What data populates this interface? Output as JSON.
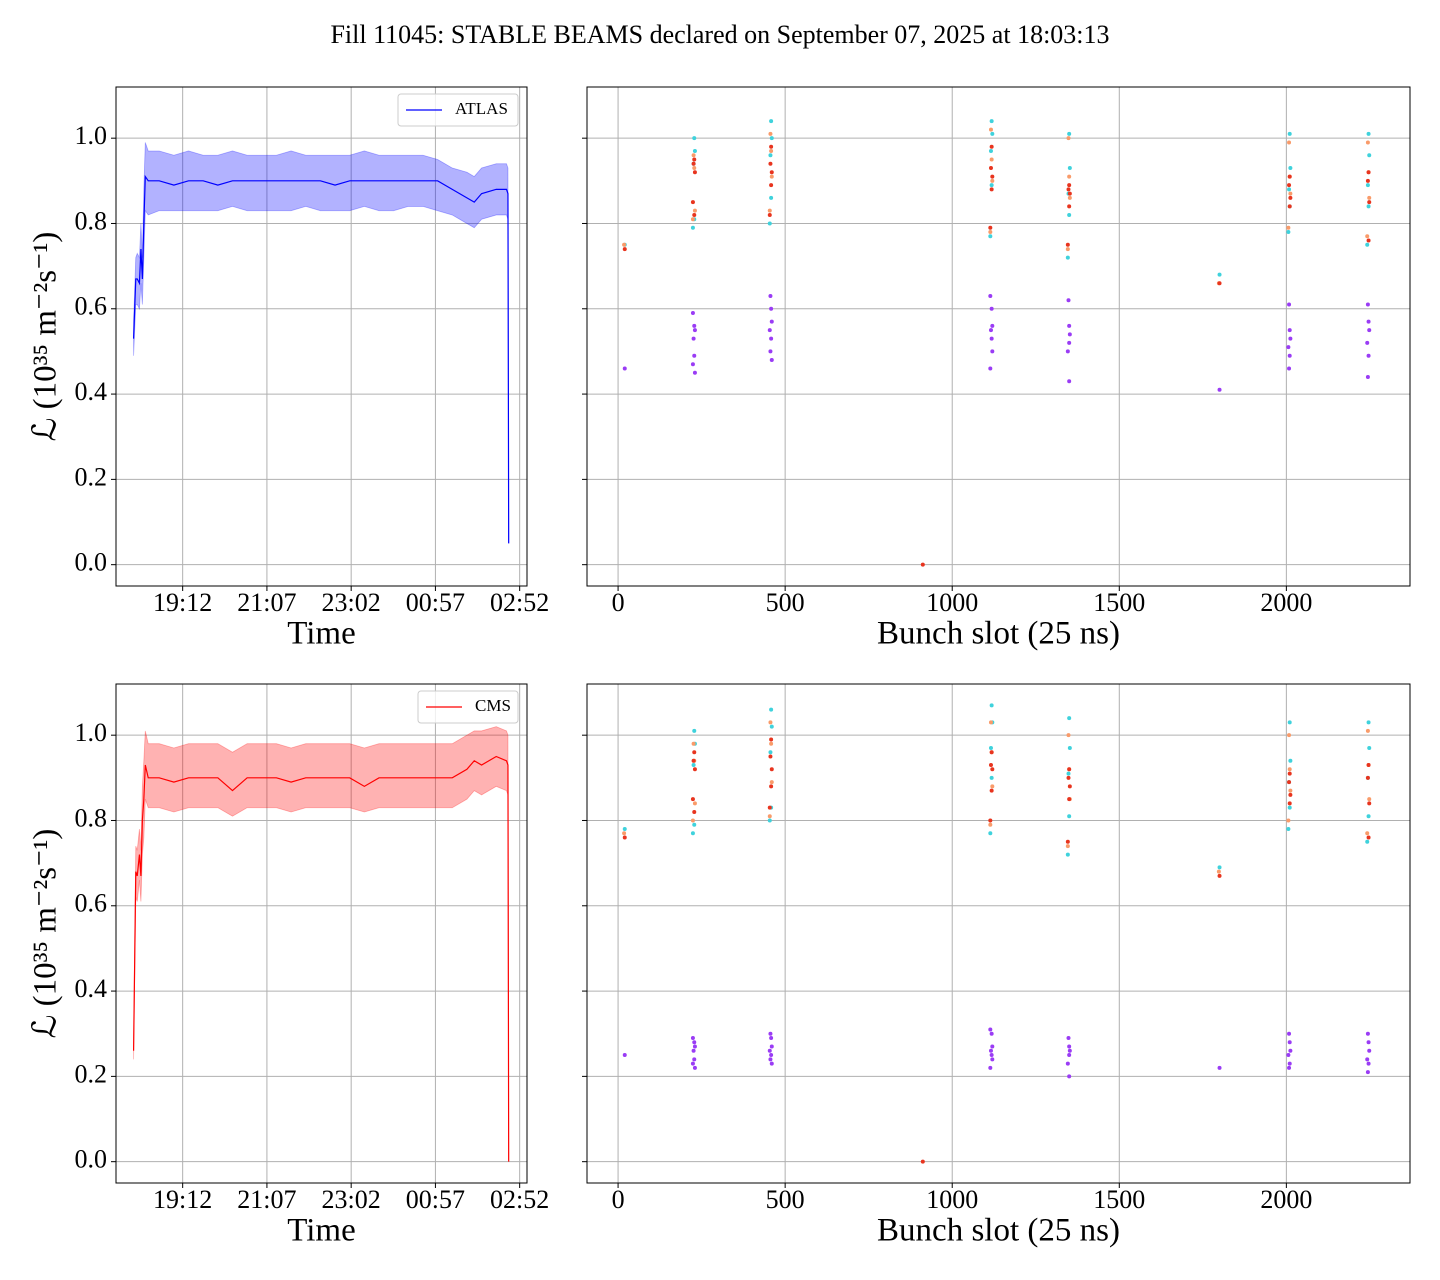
{
  "title": "Fill 11045: STABLE BEAMS declared on September 07, 2025 at 18:03:13",
  "chart_data": [
    {
      "type": "line",
      "xlabel": "Time",
      "ylabel": "ℒ (10³⁵ m⁻²s⁻¹)",
      "legend": "upper right",
      "grid": true,
      "xlim": [
        "17:41",
        "03:02"
      ],
      "xticks": [
        "19:12",
        "21:07",
        "23:02",
        "00:57",
        "02:52"
      ],
      "ylim": [
        -0.05,
        1.12
      ],
      "yticks": [
        {
          "value": 0,
          "label": "0.0"
        },
        0.2,
        0.4,
        0.6,
        0.8,
        {
          "value": 1,
          "label": "1.0"
        }
      ],
      "x": [
        "18:05",
        "18:08",
        "18:10",
        "18:13",
        "18:15",
        "18:17",
        "18:19",
        "18:21",
        "18:25",
        "18:40",
        "19:00",
        "19:20",
        "19:40",
        "20:00",
        "20:20",
        "20:40",
        "21:00",
        "21:20",
        "21:40",
        "22:00",
        "22:20",
        "22:40",
        "23:00",
        "23:20",
        "23:40",
        "00:00",
        "00:20",
        "00:40",
        "01:00",
        "01:20",
        "01:40",
        "01:50",
        "02:00",
        "02:20",
        "02:34",
        "02:36",
        "02:37"
      ],
      "series": [
        {
          "name": "ATLAS",
          "color": "#0000ff",
          "values": [
            0.53,
            0.67,
            0.67,
            0.66,
            0.74,
            0.67,
            0.8,
            0.91,
            0.9,
            0.9,
            0.89,
            0.9,
            0.9,
            0.89,
            0.9,
            0.9,
            0.9,
            0.9,
            0.9,
            0.9,
            0.9,
            0.89,
            0.9,
            0.9,
            0.9,
            0.9,
            0.9,
            0.9,
            0.9,
            0.88,
            0.86,
            0.85,
            0.87,
            0.88,
            0.88,
            0.87,
            0.05
          ],
          "band_low": [
            0.49,
            0.61,
            0.61,
            0.6,
            0.66,
            0.61,
            0.72,
            0.83,
            0.82,
            0.83,
            0.83,
            0.83,
            0.83,
            0.83,
            0.84,
            0.83,
            0.83,
            0.83,
            0.83,
            0.84,
            0.83,
            0.83,
            0.83,
            0.84,
            0.83,
            0.83,
            0.84,
            0.84,
            0.83,
            0.82,
            0.8,
            0.79,
            0.81,
            0.82,
            0.82,
            0.81,
            0.05
          ],
          "band_high": [
            0.57,
            0.72,
            0.73,
            0.72,
            0.8,
            0.72,
            0.88,
            0.99,
            0.97,
            0.97,
            0.96,
            0.97,
            0.96,
            0.96,
            0.97,
            0.96,
            0.96,
            0.96,
            0.97,
            0.96,
            0.96,
            0.96,
            0.96,
            0.97,
            0.96,
            0.96,
            0.96,
            0.96,
            0.95,
            0.93,
            0.92,
            0.91,
            0.93,
            0.94,
            0.94,
            0.93,
            0.05
          ]
        }
      ]
    },
    {
      "type": "scatter",
      "xlabel": "Bunch slot (25 ns)",
      "grid": true,
      "show_ytick_labels": false,
      "xlim": [
        -93,
        2370
      ],
      "xticks": [
        0,
        500,
        1000,
        1500,
        2000
      ],
      "ylim": [
        -0.05,
        1.12
      ],
      "yticks": [
        0,
        0.2,
        0.4,
        0.6,
        0.8,
        1
      ],
      "series": [
        {
          "color": "#9a3cf5",
          "x": [
            20,
            224,
            228,
            230,
            226,
            228,
            224,
            230,
            456,
            458,
            460,
            454,
            458,
            456,
            460,
            1114,
            1118,
            1120,
            1116,
            1118,
            1120,
            1114,
            1348,
            1350,
            1352,
            1350,
            1346,
            1350,
            1800,
            2008,
            2010,
            2012,
            2006,
            2010,
            2008,
            2244,
            2246,
            2248,
            2242,
            2246,
            2244
          ],
          "values": [
            0.46,
            0.59,
            0.56,
            0.55,
            0.53,
            0.49,
            0.47,
            0.45,
            0.63,
            0.6,
            0.57,
            0.55,
            0.53,
            0.5,
            0.48,
            0.63,
            0.6,
            0.56,
            0.55,
            0.53,
            0.5,
            0.46,
            0.62,
            0.56,
            0.54,
            0.52,
            0.5,
            0.43,
            0.41,
            0.61,
            0.55,
            0.53,
            0.51,
            0.49,
            0.46,
            0.61,
            0.57,
            0.55,
            0.52,
            0.49,
            0.44
          ]
        },
        {
          "color": "#3fd2dc",
          "x": [
            20,
            228,
            230,
            226,
            228,
            224,
            458,
            460,
            456,
            458,
            454,
            1118,
            1120,
            1116,
            1118,
            1114,
            1350,
            1352,
            1348,
            1350,
            1346,
            1800,
            2010,
            2012,
            2008,
            2010,
            2006,
            2246,
            2248,
            2244,
            2246,
            2242
          ],
          "values": [
            0.75,
            1.0,
            0.97,
            0.94,
            0.81,
            0.79,
            1.04,
            1.0,
            0.96,
            0.86,
            0.8,
            1.04,
            1.01,
            0.97,
            0.89,
            0.77,
            1.01,
            0.93,
            0.87,
            0.82,
            0.72,
            0.68,
            1.01,
            0.93,
            0.88,
            0.84,
            0.78,
            1.01,
            0.96,
            0.89,
            0.84,
            0.75
          ]
        },
        {
          "color": "#f99b6a",
          "x": [
            18,
            226,
            228,
            230,
            224,
            456,
            458,
            460,
            454,
            1116,
            1118,
            1120,
            1114,
            1348,
            1350,
            1352,
            1346,
            1798,
            2008,
            2010,
            2012,
            2006,
            2244,
            2246,
            2248,
            2242
          ],
          "values": [
            0.75,
            0.96,
            0.93,
            0.83,
            0.81,
            1.01,
            0.97,
            0.91,
            0.83,
            1.02,
            0.95,
            0.9,
            0.78,
            1.0,
            0.91,
            0.86,
            0.74,
            0.66,
            0.99,
            0.91,
            0.87,
            0.79,
            0.99,
            0.92,
            0.86,
            0.77
          ]
        },
        {
          "color": "#e8341e",
          "x": [
            20,
            228,
            226,
            230,
            224,
            228,
            458,
            456,
            460,
            458,
            454,
            912,
            1118,
            1116,
            1120,
            1118,
            1114,
            1350,
            1348,
            1352,
            1350,
            1346,
            1800,
            2010,
            2008,
            2012,
            2010,
            2246,
            2244,
            2248,
            2246
          ],
          "values": [
            0.74,
            0.95,
            0.94,
            0.92,
            0.85,
            0.82,
            0.98,
            0.94,
            0.92,
            0.89,
            0.82,
            0.0,
            0.98,
            0.93,
            0.91,
            0.88,
            0.79,
            0.89,
            0.88,
            0.87,
            0.84,
            0.75,
            0.66,
            0.91,
            0.89,
            0.86,
            0.84,
            0.92,
            0.9,
            0.85,
            0.76
          ]
        }
      ]
    },
    {
      "type": "line",
      "xlabel": "Time",
      "ylabel": "ℒ (10³⁵ m⁻²s⁻¹)",
      "legend": "upper right",
      "grid": true,
      "xlim": [
        "17:41",
        "03:02"
      ],
      "xticks": [
        "19:12",
        "21:07",
        "23:02",
        "00:57",
        "02:52"
      ],
      "ylim": [
        -0.05,
        1.12
      ],
      "yticks": [
        {
          "value": 0,
          "label": "0.0"
        },
        0.2,
        0.4,
        0.6,
        0.8,
        {
          "value": 1,
          "label": "1.0"
        }
      ],
      "x": [
        "18:05",
        "18:08",
        "18:10",
        "18:13",
        "18:15",
        "18:17",
        "18:19",
        "18:21",
        "18:25",
        "18:40",
        "19:00",
        "19:20",
        "19:40",
        "20:00",
        "20:20",
        "20:40",
        "21:00",
        "21:20",
        "21:40",
        "22:00",
        "22:20",
        "22:40",
        "23:00",
        "23:20",
        "23:40",
        "00:00",
        "00:20",
        "00:40",
        "01:00",
        "01:20",
        "01:40",
        "01:50",
        "02:00",
        "02:20",
        "02:34",
        "02:36",
        "02:37"
      ],
      "series": [
        {
          "name": "CMS",
          "color": "#ff0000",
          "values": [
            0.26,
            0.68,
            0.67,
            0.72,
            0.67,
            0.8,
            0.85,
            0.93,
            0.9,
            0.9,
            0.89,
            0.9,
            0.9,
            0.9,
            0.87,
            0.9,
            0.9,
            0.9,
            0.89,
            0.9,
            0.9,
            0.9,
            0.9,
            0.88,
            0.9,
            0.9,
            0.9,
            0.9,
            0.9,
            0.9,
            0.92,
            0.94,
            0.93,
            0.95,
            0.94,
            0.93,
            0.0
          ],
          "band_low": [
            0.24,
            0.62,
            0.61,
            0.66,
            0.61,
            0.72,
            0.76,
            0.85,
            0.83,
            0.83,
            0.82,
            0.83,
            0.83,
            0.83,
            0.81,
            0.83,
            0.83,
            0.83,
            0.82,
            0.83,
            0.83,
            0.83,
            0.83,
            0.82,
            0.83,
            0.83,
            0.83,
            0.83,
            0.83,
            0.83,
            0.85,
            0.87,
            0.86,
            0.88,
            0.87,
            0.86,
            0.0
          ],
          "band_high": [
            0.28,
            0.74,
            0.73,
            0.78,
            0.73,
            0.88,
            0.94,
            1.01,
            0.98,
            0.98,
            0.97,
            0.98,
            0.98,
            0.98,
            0.96,
            0.98,
            0.98,
            0.98,
            0.97,
            0.98,
            0.98,
            0.98,
            0.98,
            0.97,
            0.98,
            0.98,
            0.98,
            0.98,
            0.98,
            0.98,
            1.0,
            1.01,
            1.01,
            1.02,
            1.01,
            1.0,
            0.0
          ]
        }
      ]
    },
    {
      "type": "scatter",
      "xlabel": "Bunch slot (25 ns)",
      "grid": true,
      "show_ytick_labels": false,
      "xlim": [
        -93,
        2370
      ],
      "xticks": [
        0,
        500,
        1000,
        1500,
        2000
      ],
      "ylim": [
        -0.05,
        1.12
      ],
      "yticks": [
        0,
        0.2,
        0.4,
        0.6,
        0.8,
        1
      ],
      "series": [
        {
          "color": "#9a3cf5",
          "x": [
            20,
            224,
            228,
            230,
            226,
            228,
            224,
            230,
            456,
            458,
            460,
            454,
            458,
            456,
            460,
            1114,
            1118,
            1120,
            1116,
            1118,
            1120,
            1114,
            1348,
            1350,
            1352,
            1350,
            1346,
            1350,
            1800,
            2008,
            2010,
            2012,
            2006,
            2010,
            2008,
            2244,
            2246,
            2248,
            2242,
            2246,
            2244
          ],
          "values": [
            0.25,
            0.29,
            0.28,
            0.27,
            0.26,
            0.24,
            0.23,
            0.22,
            0.3,
            0.29,
            0.27,
            0.26,
            0.25,
            0.24,
            0.23,
            0.31,
            0.3,
            0.27,
            0.26,
            0.25,
            0.24,
            0.22,
            0.29,
            0.27,
            0.26,
            0.25,
            0.23,
            0.2,
            0.22,
            0.3,
            0.28,
            0.26,
            0.25,
            0.23,
            0.22,
            0.3,
            0.28,
            0.26,
            0.24,
            0.23,
            0.21
          ]
        },
        {
          "color": "#3fd2dc",
          "x": [
            20,
            228,
            230,
            226,
            228,
            224,
            458,
            460,
            456,
            458,
            454,
            1118,
            1120,
            1116,
            1118,
            1114,
            1350,
            1352,
            1348,
            1350,
            1346,
            1800,
            2010,
            2012,
            2008,
            2010,
            2006,
            2246,
            2248,
            2244,
            2246,
            2242
          ],
          "values": [
            0.78,
            1.01,
            0.98,
            0.93,
            0.79,
            0.77,
            1.06,
            1.02,
            0.96,
            0.83,
            0.8,
            1.07,
            1.03,
            0.97,
            0.9,
            0.77,
            1.04,
            0.97,
            0.91,
            0.81,
            0.72,
            0.69,
            1.03,
            0.94,
            0.89,
            0.83,
            0.78,
            1.03,
            0.97,
            0.9,
            0.81,
            0.75
          ]
        },
        {
          "color": "#f99b6a",
          "x": [
            18,
            226,
            228,
            230,
            224,
            456,
            458,
            460,
            454,
            1116,
            1118,
            1120,
            1114,
            1348,
            1350,
            1352,
            1346,
            1798,
            2008,
            2010,
            2012,
            2006,
            2244,
            2246,
            2248,
            2242
          ],
          "values": [
            0.77,
            0.98,
            0.94,
            0.84,
            0.8,
            1.03,
            0.98,
            0.89,
            0.81,
            1.03,
            0.96,
            0.88,
            0.79,
            1.0,
            0.92,
            0.85,
            0.74,
            0.68,
            1.0,
            0.92,
            0.87,
            0.8,
            1.01,
            0.93,
            0.85,
            0.77
          ]
        },
        {
          "color": "#e8341e",
          "x": [
            20,
            228,
            226,
            230,
            224,
            228,
            458,
            456,
            460,
            458,
            454,
            912,
            1118,
            1116,
            1120,
            1118,
            1114,
            1350,
            1348,
            1352,
            1350,
            1346,
            1800,
            2010,
            2008,
            2012,
            2010,
            2246,
            2244,
            2248,
            2246
          ],
          "values": [
            0.76,
            0.96,
            0.94,
            0.92,
            0.85,
            0.82,
            0.99,
            0.95,
            0.92,
            0.88,
            0.83,
            0.0,
            0.96,
            0.93,
            0.92,
            0.87,
            0.8,
            0.92,
            0.9,
            0.88,
            0.85,
            0.75,
            0.67,
            0.91,
            0.89,
            0.86,
            0.84,
            0.93,
            0.9,
            0.84,
            0.76
          ]
        }
      ]
    }
  ]
}
